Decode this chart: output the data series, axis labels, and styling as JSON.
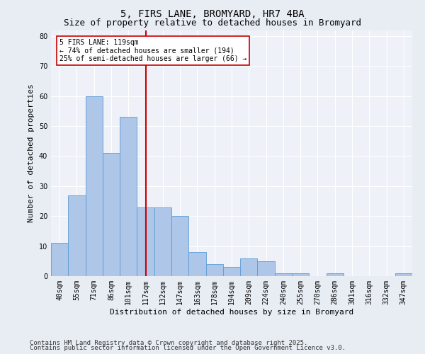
{
  "title1": "5, FIRS LANE, BROMYARD, HR7 4BA",
  "title2": "Size of property relative to detached houses in Bromyard",
  "xlabel": "Distribution of detached houses by size in Bromyard",
  "ylabel": "Number of detached properties",
  "categories": [
    "40sqm",
    "55sqm",
    "71sqm",
    "86sqm",
    "101sqm",
    "117sqm",
    "132sqm",
    "147sqm",
    "163sqm",
    "178sqm",
    "194sqm",
    "209sqm",
    "224sqm",
    "240sqm",
    "255sqm",
    "270sqm",
    "286sqm",
    "301sqm",
    "316sqm",
    "332sqm",
    "347sqm"
  ],
  "values": [
    11,
    27,
    60,
    41,
    53,
    23,
    23,
    20,
    8,
    4,
    3,
    6,
    5,
    1,
    1,
    0,
    1,
    0,
    0,
    0,
    1
  ],
  "bar_color": "#aec6e8",
  "bar_edge_color": "#5b9bd5",
  "highlight_bar_index": 5,
  "highlight_line_color": "#cc0000",
  "annotation_text": "5 FIRS LANE: 119sqm\n← 74% of detached houses are smaller (194)\n25% of semi-detached houses are larger (66) →",
  "annotation_box_color": "#ffffff",
  "annotation_box_edge_color": "#cc0000",
  "ylim": [
    0,
    82
  ],
  "yticks": [
    0,
    10,
    20,
    30,
    40,
    50,
    60,
    70,
    80
  ],
  "footer1": "Contains HM Land Registry data © Crown copyright and database right 2025.",
  "footer2": "Contains public sector information licensed under the Open Government Licence v3.0.",
  "bg_color": "#e8edf4",
  "plot_bg_color": "#eef2f8",
  "grid_color": "#ffffff",
  "title1_fontsize": 10,
  "title2_fontsize": 9,
  "axis_label_fontsize": 8,
  "tick_fontsize": 7,
  "annotation_fontsize": 7,
  "footer_fontsize": 6.5
}
